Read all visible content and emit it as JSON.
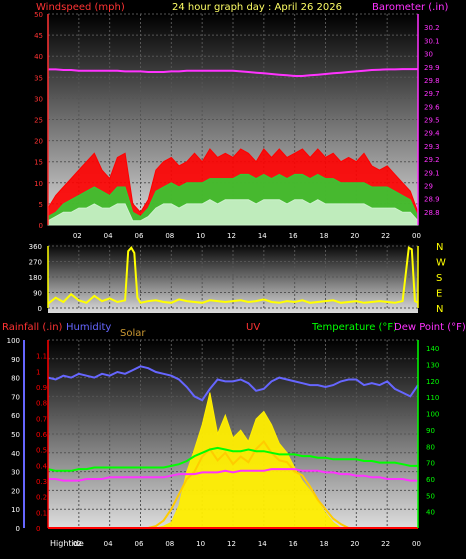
{
  "header": {
    "windspeed_label": "Windspeed (mph)",
    "title": "24 hour graph day : April 26 2026",
    "barometer_label": "Barometer (.in)"
  },
  "panel3_header": {
    "rainfall_label": "Rainfall (.in)",
    "humidity_label": "Humidity",
    "solar_label": "Solar",
    "uv_label": "UV",
    "temperature_label": "Temperature (°F)",
    "dewpoint_label": "Dew Point (°F)"
  },
  "hightide_label": "Hightide",
  "colors": {
    "wind_gust": "#ff0000",
    "wind_avg": "#33cc33",
    "wind_min": "#ccf2cc",
    "barometer": "#ff33ff",
    "direction": "#ffff00",
    "humidity": "#6666ff",
    "temperature": "#00ff00",
    "dewpoint": "#ff33ff",
    "solar": "#ffcc00",
    "uv": "#ffee00",
    "rainfall": "#ff0000",
    "left_axis": "#ff3333",
    "right_axis": "#ff33ff",
    "dir_axis": "#ffff00",
    "temp_axis": "#00ff00",
    "panel_bg": "#ffffff"
  },
  "chart_data": [
    {
      "type": "area",
      "title": "24 hour graph day : April 26 2026",
      "x_ticks": [
        "02",
        "04",
        "06",
        "08",
        "10",
        "12",
        "14",
        "16",
        "18",
        "20",
        "22",
        "00"
      ],
      "x": [
        0,
        0.5,
        1,
        1.5,
        2,
        2.5,
        3,
        3.5,
        4,
        4.5,
        5,
        5.5,
        6,
        6.5,
        7,
        7.5,
        8,
        8.5,
        9,
        9.5,
        10,
        10.5,
        11,
        11.5,
        12,
        12.5,
        13,
        13.5,
        14,
        14.5,
        15,
        15.5,
        16,
        16.5,
        17,
        17.5,
        18,
        18.5,
        19,
        19.5,
        20,
        20.5,
        21,
        21.5,
        22,
        22.5,
        23,
        23.5,
        24
      ],
      "left_axis": {
        "label": "Windspeed (mph)",
        "ylim": [
          0,
          50
        ],
        "ticks": [
          0,
          5,
          10,
          15,
          20,
          25,
          30,
          35,
          40,
          45,
          50
        ]
      },
      "right_axis": {
        "label": "Barometer (.in)",
        "ylim": [
          28.7,
          30.3
        ],
        "ticks": [
          "28.8",
          "28.9",
          "29",
          "29.1",
          "29.2",
          "29.3",
          "29.4",
          "29.5",
          "29.6",
          "29.7",
          "29.8",
          "29.9",
          "30",
          "30.1",
          "30.2"
        ]
      },
      "series": [
        {
          "name": "gust",
          "axis": "left",
          "values": [
            4,
            7,
            9,
            11,
            13,
            15,
            17,
            13,
            11,
            16,
            17,
            5,
            3,
            6,
            13,
            15,
            16,
            14,
            15,
            17,
            15,
            18,
            16,
            17,
            16,
            18,
            17,
            15,
            18,
            16,
            18,
            16,
            17,
            18,
            16,
            18,
            16,
            17,
            15,
            16,
            15,
            17,
            14,
            13,
            14,
            12,
            10,
            8,
            3
          ]
        },
        {
          "name": "average",
          "axis": "left",
          "values": [
            2,
            3,
            5,
            6,
            7,
            8,
            9,
            8,
            7,
            9,
            9,
            3,
            2,
            4,
            8,
            9,
            10,
            9,
            10,
            10,
            10,
            11,
            11,
            11,
            11,
            12,
            12,
            11,
            12,
            11,
            12,
            11,
            12,
            12,
            11,
            12,
            11,
            11,
            10,
            10,
            10,
            10,
            9,
            9,
            9,
            8,
            7,
            6,
            2
          ]
        },
        {
          "name": "minimum",
          "axis": "left",
          "values": [
            1,
            2,
            3,
            3,
            4,
            4,
            5,
            4,
            4,
            5,
            5,
            1,
            1,
            2,
            4,
            5,
            5,
            4,
            5,
            5,
            5,
            6,
            5,
            6,
            6,
            6,
            6,
            5,
            6,
            6,
            6,
            5,
            6,
            6,
            5,
            6,
            5,
            5,
            5,
            5,
            5,
            5,
            4,
            4,
            4,
            4,
            3,
            3,
            1
          ]
        },
        {
          "name": "barometer",
          "axis": "right",
          "values": [
            29.88,
            29.88,
            29.875,
            29.875,
            29.87,
            29.87,
            29.87,
            29.87,
            29.87,
            29.87,
            29.865,
            29.865,
            29.865,
            29.86,
            29.86,
            29.86,
            29.865,
            29.865,
            29.87,
            29.87,
            29.87,
            29.87,
            29.87,
            29.87,
            29.87,
            29.865,
            29.86,
            29.855,
            29.85,
            29.845,
            29.84,
            29.835,
            29.83,
            29.83,
            29.835,
            29.84,
            29.845,
            29.85,
            29.855,
            29.86,
            29.865,
            29.87,
            29.875,
            29.878,
            29.88,
            29.88,
            29.882,
            29.882,
            29.882
          ]
        }
      ]
    },
    {
      "type": "line",
      "x_ticks": [
        "02",
        "04",
        "06",
        "08",
        "10",
        "12",
        "14",
        "16",
        "18",
        "20",
        "22",
        "00"
      ],
      "x": [
        0,
        0.5,
        1,
        1.5,
        2,
        2.5,
        3,
        3.5,
        4,
        4.5,
        5,
        5.2,
        5.4,
        5.6,
        5.8,
        6,
        6.5,
        7,
        7.5,
        8,
        8.5,
        9,
        9.5,
        10,
        10.5,
        11,
        11.5,
        12,
        12.5,
        13,
        13.5,
        14,
        14.5,
        15,
        15.5,
        16,
        16.5,
        17,
        17.5,
        18,
        18.5,
        19,
        19.5,
        20,
        20.5,
        21,
        21.5,
        22,
        22.5,
        23,
        23.4,
        23.6,
        23.8,
        24
      ],
      "ylim": [
        0,
        360
      ],
      "yticks": [
        0,
        90,
        180,
        270,
        360
      ],
      "right_labels": [
        "N",
        "W",
        "S",
        "E",
        "N"
      ],
      "series": [
        {
          "name": "direction",
          "values": [
            25,
            60,
            35,
            80,
            45,
            30,
            70,
            40,
            55,
            35,
            45,
            330,
            350,
            320,
            60,
            30,
            40,
            45,
            35,
            30,
            50,
            40,
            35,
            30,
            45,
            40,
            35,
            40,
            45,
            35,
            40,
            50,
            35,
            30,
            40,
            35,
            45,
            30,
            35,
            40,
            45,
            30,
            35,
            40,
            30,
            35,
            40,
            35,
            30,
            40,
            350,
            340,
            40,
            30
          ]
        }
      ]
    },
    {
      "type": "line",
      "x_ticks": [
        "02",
        "04",
        "06",
        "08",
        "10",
        "12",
        "14",
        "16",
        "18",
        "20",
        "22",
        "00"
      ],
      "x": [
        0,
        0.5,
        1,
        1.5,
        2,
        2.5,
        3,
        3.5,
        4,
        4.5,
        5,
        5.5,
        6,
        6.5,
        7,
        7.5,
        8,
        8.5,
        9,
        9.5,
        10,
        10.5,
        11,
        11.5,
        12,
        12.5,
        13,
        13.5,
        14,
        14.5,
        15,
        15.5,
        16,
        16.5,
        17,
        17.5,
        18,
        18.5,
        19,
        19.5,
        20,
        20.5,
        21,
        21.5,
        22,
        22.5,
        23,
        23.5,
        24
      ],
      "axes": {
        "humidity": {
          "ylim": [
            0,
            100
          ],
          "ticks": [
            0,
            10,
            20,
            30,
            40,
            50,
            60,
            70,
            80,
            90,
            100
          ]
        },
        "rainfall": {
          "ylim": [
            0,
            1.2
          ],
          "ticks": [
            "0",
            "0.1",
            "0.2",
            "0.3",
            "0.4",
            "0.5",
            "0.6",
            "0.7",
            "0.8",
            "0.9",
            "1",
            "1.1"
          ]
        },
        "temperature": {
          "ylim": [
            30,
            145
          ],
          "ticks": [
            40,
            50,
            60,
            70,
            80,
            90,
            100,
            110,
            120,
            130,
            140
          ]
        }
      },
      "series": [
        {
          "name": "humidity",
          "axis": "humidity",
          "values": [
            80,
            79,
            81,
            80,
            82,
            81,
            80,
            82,
            81,
            83,
            82,
            84,
            86,
            85,
            83,
            82,
            81,
            79,
            75,
            70,
            68,
            74,
            79,
            78,
            78,
            79,
            77,
            73,
            74,
            78,
            80,
            79,
            78,
            77,
            76,
            76,
            75,
            76,
            78,
            79,
            79,
            76,
            77,
            76,
            78,
            74,
            72,
            70,
            76
          ]
        },
        {
          "name": "temperature",
          "axis": "temperature",
          "values": [
            66,
            65,
            65,
            65,
            66,
            66,
            67,
            67,
            67,
            67,
            67,
            67,
            67,
            67,
            67,
            67,
            68,
            69,
            71,
            74,
            76,
            78,
            79,
            78,
            77,
            77,
            78,
            77,
            77,
            76,
            75,
            75,
            75,
            74,
            74,
            73,
            73,
            72,
            72,
            72,
            72,
            71,
            71,
            70,
            70,
            70,
            69,
            68,
            68
          ]
        },
        {
          "name": "dewpoint",
          "axis": "temperature",
          "values": [
            60,
            60,
            59,
            59,
            59,
            60,
            60,
            60,
            61,
            61,
            61,
            61,
            61,
            61,
            61,
            61,
            62,
            63,
            63,
            63,
            64,
            64,
            64,
            65,
            64,
            65,
            65,
            65,
            65,
            66,
            66,
            66,
            66,
            65,
            65,
            65,
            64,
            64,
            63,
            63,
            62,
            62,
            61,
            61,
            60,
            60,
            60,
            59,
            59
          ]
        },
        {
          "name": "solar",
          "axis": "humidity",
          "values": [
            0,
            0,
            0,
            0,
            0,
            0,
            0,
            0,
            0,
            0,
            0,
            0,
            0,
            0,
            1,
            4,
            10,
            18,
            26,
            30,
            38,
            42,
            36,
            40,
            34,
            38,
            35,
            42,
            46,
            40,
            36,
            35,
            30,
            28,
            22,
            15,
            10,
            5,
            2,
            0,
            0,
            0,
            0,
            0,
            0,
            0,
            0,
            0,
            0
          ]
        },
        {
          "name": "uv",
          "axis": "humidity",
          "values": [
            0,
            0,
            0,
            0,
            0,
            0,
            0,
            0,
            0,
            0,
            0,
            0,
            0,
            0,
            0,
            1,
            3,
            12,
            30,
            42,
            55,
            72,
            50,
            60,
            48,
            52,
            46,
            58,
            62,
            55,
            45,
            40,
            32,
            25,
            20,
            14,
            8,
            3,
            0,
            0,
            0,
            0,
            0,
            0,
            0,
            0,
            0,
            0,
            0
          ]
        },
        {
          "name": "rainfall",
          "axis": "rainfall",
          "values": [
            0,
            0,
            0,
            0,
            0,
            0,
            0,
            0,
            0,
            0,
            0,
            0,
            0,
            0,
            0,
            0,
            0,
            0,
            0,
            0,
            0,
            0,
            0,
            0,
            0,
            0,
            0,
            0,
            0,
            0,
            0,
            0,
            0,
            0,
            0,
            0,
            0,
            0,
            0,
            0,
            0,
            0,
            0,
            0,
            0,
            0,
            0,
            0,
            0
          ]
        }
      ]
    }
  ]
}
